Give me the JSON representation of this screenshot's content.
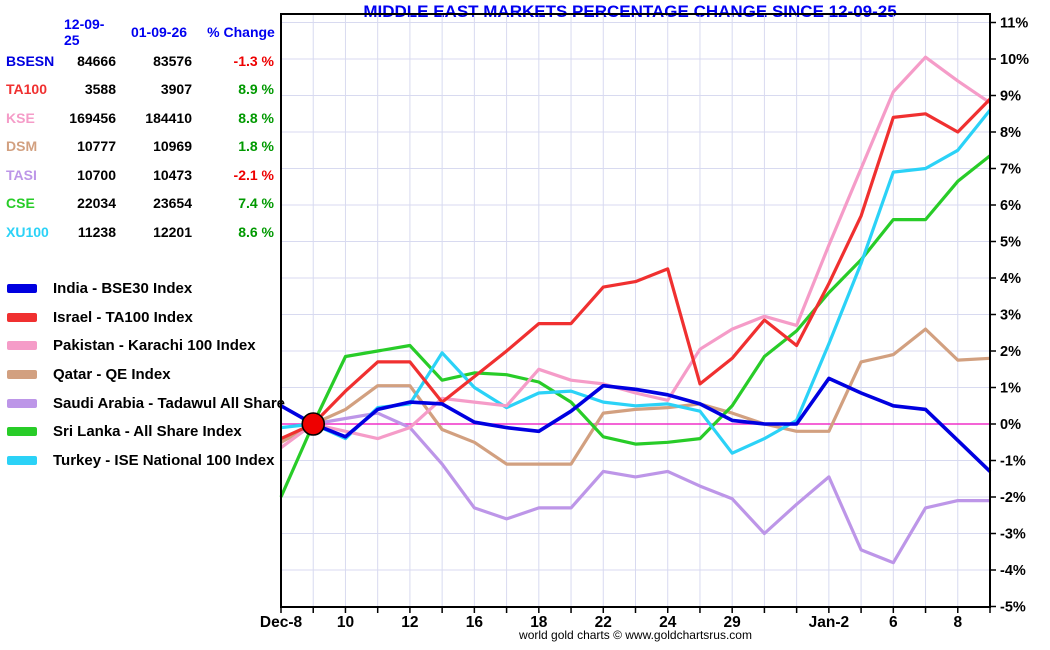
{
  "title": {
    "text": "MIDDLE EAST MARKETS PERCENTAGE CHANGE SINCE 12-09-25",
    "color": "#0000f0"
  },
  "table": {
    "header_color": "#0000f0",
    "headers": [
      "12-09-25",
      "01-09-26",
      "% Change"
    ],
    "negative_color": "#ee0000",
    "positive_color": "#009900",
    "rows": [
      {
        "symbol": "BSESN",
        "color": "#0000e0",
        "v1": "84666",
        "v2": "83576",
        "pct": "-1.3 %",
        "direction": "negative"
      },
      {
        "symbol": "TA100",
        "color": "#f03030",
        "v1": "3588",
        "v2": "3907",
        "pct": "8.9 %",
        "direction": "positive"
      },
      {
        "symbol": "KSE",
        "color": "#f59cc8",
        "v1": "169456",
        "v2": "184410",
        "pct": "8.8 %",
        "direction": "positive"
      },
      {
        "symbol": "DSM",
        "color": "#d2a080",
        "v1": "10777",
        "v2": "10969",
        "pct": "1.8 %",
        "direction": "positive"
      },
      {
        "symbol": "TASI",
        "color": "#bd96e8",
        "v1": "10700",
        "v2": "10473",
        "pct": "-2.1 %",
        "direction": "negative"
      },
      {
        "symbol": "CSE",
        "color": "#28cc28",
        "v1": "22034",
        "v2": "23654",
        "pct": "7.4 %",
        "direction": "positive"
      },
      {
        "symbol": "XU100",
        "color": "#2bd2f7",
        "v1": "11238",
        "v2": "12201",
        "pct": "8.6 %",
        "direction": "positive"
      }
    ]
  },
  "legend": [
    {
      "label": "India - BSE30 Index",
      "color": "#0000e0"
    },
    {
      "label": "Israel - TA100 Index",
      "color": "#f03030"
    },
    {
      "label": "Pakistan - Karachi 100 Index",
      "color": "#f59cc8"
    },
    {
      "label": "Qatar - QE Index",
      "color": "#d2a080"
    },
    {
      "label": "Saudi Arabia - Tadawul All Share",
      "color": "#bd96e8"
    },
    {
      "label": "Sri Lanka - All Share Index",
      "color": "#28cc28"
    },
    {
      "label": "Turkey - ISE National 100 Index",
      "color": "#2bd2f7"
    }
  ],
  "chart_data": {
    "type": "line",
    "title": "MIDDLE EAST MARKETS PERCENTAGE CHANGE SINCE 12-09-25",
    "x": [
      "Dec-8",
      "Dec-9",
      "Dec-10",
      "Dec-11",
      "Dec-12",
      "Dec-15",
      "Dec-16",
      "Dec-17",
      "Dec-18",
      "Dec-19",
      "Dec-22",
      "Dec-23",
      "Dec-24",
      "Dec-26",
      "Dec-29",
      "Dec-30",
      "Dec-31",
      "Jan-2",
      "Jan-5",
      "Jan-6",
      "Jan-7",
      "Jan-8",
      "Jan-9"
    ],
    "x_tick_labels": [
      {
        "index": 0,
        "label": "Dec-8"
      },
      {
        "index": 2,
        "label": "10"
      },
      {
        "index": 4,
        "label": "12"
      },
      {
        "index": 6,
        "label": "16"
      },
      {
        "index": 8,
        "label": "18"
      },
      {
        "index": 10,
        "label": "22"
      },
      {
        "index": 12,
        "label": "24"
      },
      {
        "index": 14,
        "label": "29"
      },
      {
        "index": 17,
        "label": "Jan-2"
      },
      {
        "index": 19,
        "label": "6"
      },
      {
        "index": 21,
        "label": "8"
      }
    ],
    "ylabel": "",
    "y_unit": "%",
    "ylim": [
      -5,
      11
    ],
    "y_tick_step": 1,
    "grid": true,
    "grid_color": "#d8daf0",
    "zero_line_color": "#f030c8",
    "frame_color": "#000000",
    "marker": {
      "label": "start-point 12-09-25",
      "x_index": 1,
      "value": 0,
      "fill": "#ee0000",
      "stroke": "#000000",
      "radius": 11
    },
    "series": [
      {
        "name": "Saudi Arabia - Tadawul All Share",
        "short": "TASI",
        "color": "#bd96e8",
        "width": 3.2,
        "values": [
          -0.5,
          0,
          0.15,
          0.3,
          -0.1,
          -1.1,
          -2.3,
          -2.6,
          -2.3,
          -2.3,
          -1.3,
          -1.45,
          -1.3,
          -1.7,
          -2.05,
          -3.0,
          -2.2,
          -1.45,
          -3.45,
          -3.8,
          -2.3,
          -2.1,
          -2.1
        ]
      },
      {
        "name": "Qatar - QE Index",
        "short": "DSM",
        "color": "#d2a080",
        "width": 3.2,
        "values": [
          -0.5,
          0,
          0.4,
          1.05,
          1.05,
          -0.15,
          -0.5,
          -1.1,
          -1.1,
          -1.1,
          0.3,
          0.4,
          0.45,
          0.55,
          0.3,
          0.0,
          -0.2,
          -0.2,
          1.7,
          1.9,
          2.6,
          1.75,
          1.8
        ]
      },
      {
        "name": "Sri Lanka - All Share Index",
        "short": "CSE",
        "color": "#28cc28",
        "width": 3.2,
        "values": [
          -2.0,
          0,
          1.85,
          2.0,
          2.15,
          1.2,
          1.4,
          1.35,
          1.15,
          0.6,
          -0.35,
          -0.55,
          -0.5,
          -0.4,
          0.5,
          1.85,
          2.55,
          3.6,
          4.5,
          5.6,
          5.6,
          6.65,
          7.35
        ]
      },
      {
        "name": "Turkey - ISE National 100 Index",
        "short": "XU100",
        "color": "#2bd2f7",
        "width": 3.2,
        "values": [
          -0.1,
          0,
          -0.4,
          0.45,
          0.55,
          1.95,
          1.0,
          0.45,
          0.85,
          0.9,
          0.6,
          0.5,
          0.55,
          0.35,
          -0.8,
          -0.4,
          0.1,
          2.2,
          4.4,
          6.9,
          7.0,
          7.5,
          8.6
        ]
      },
      {
        "name": "Pakistan - Karachi 100 Index",
        "short": "KSE",
        "color": "#f59cc8",
        "width": 3.2,
        "values": [
          -0.65,
          0,
          -0.2,
          -0.4,
          -0.1,
          0.7,
          0.6,
          0.5,
          1.5,
          1.2,
          1.1,
          0.85,
          0.65,
          2.05,
          2.6,
          2.95,
          2.7,
          4.9,
          7.0,
          9.1,
          10.05,
          9.4,
          8.8
        ]
      },
      {
        "name": "Israel - TA100 Index",
        "short": "TA100",
        "color": "#f03030",
        "width": 3.2,
        "values": [
          -0.4,
          0,
          0.9,
          1.7,
          1.7,
          0.6,
          1.3,
          2.0,
          2.75,
          2.75,
          3.75,
          3.9,
          4.25,
          1.1,
          1.8,
          2.85,
          2.15,
          3.85,
          5.7,
          8.4,
          8.5,
          8.0,
          8.9
        ]
      },
      {
        "name": "India - BSE30 Index",
        "short": "BSESN",
        "color": "#0000e0",
        "width": 3.6,
        "values": [
          0.5,
          0,
          -0.35,
          0.4,
          0.6,
          0.55,
          0.05,
          -0.1,
          -0.2,
          0.35,
          1.05,
          0.95,
          0.8,
          0.55,
          0.1,
          0.0,
          0.0,
          1.25,
          0.85,
          0.5,
          0.4,
          -0.45,
          -1.3
        ]
      }
    ]
  },
  "footer": {
    "text": "world gold charts © www.goldchartsrus.com"
  }
}
